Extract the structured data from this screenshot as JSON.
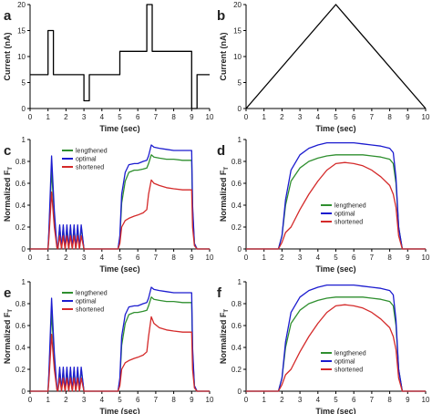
{
  "colors": {
    "axis": "#000000",
    "stimulus": "#000000",
    "lengthened": "#2f8f2f",
    "optimal": "#1c1ccf",
    "shortened": "#d42a2a"
  },
  "chart_data": [
    {
      "panel": "a",
      "type": "line",
      "xlabel": "Time (sec)",
      "ylabel": "Current (nA)",
      "xlim": [
        0,
        10
      ],
      "ylim": [
        0,
        20
      ],
      "xticks": [
        "0",
        "1",
        "2",
        "3",
        "4",
        "5",
        "6",
        "7",
        "8",
        "9",
        "10"
      ],
      "yticks": [
        "0",
        "5",
        "10",
        "15",
        "20"
      ],
      "series": [
        {
          "color": "#000000",
          "x": [
            0,
            1,
            1,
            1.3,
            1.3,
            3,
            3,
            3.3,
            3.3,
            5,
            5,
            6.5,
            6.5,
            6.8,
            6.8,
            9,
            9,
            9.3,
            9.3,
            10
          ],
          "y": [
            6.5,
            6.5,
            15,
            15,
            6.5,
            6.5,
            1.5,
            1.5,
            6.5,
            6.5,
            11,
            11,
            20,
            20,
            11,
            11,
            0,
            0,
            6.5,
            6.5
          ]
        }
      ]
    },
    {
      "panel": "b",
      "type": "line",
      "xlabel": "Time (sec)",
      "ylabel": "Current (nA)",
      "xlim": [
        0,
        10
      ],
      "ylim": [
        0,
        20
      ],
      "xticks": [
        "0",
        "1",
        "2",
        "3",
        "4",
        "5",
        "6",
        "7",
        "8",
        "9",
        "10"
      ],
      "yticks": [
        "0",
        "5",
        "10",
        "15",
        "20"
      ],
      "series": [
        {
          "color": "#000000",
          "x": [
            0,
            5,
            10
          ],
          "y": [
            0,
            20,
            0
          ]
        }
      ]
    },
    {
      "panel": "c",
      "type": "line",
      "xlabel": "Time (sec)",
      "ylabel": "Normalized F",
      "ylabel_sub": "T",
      "xlim": [
        0,
        10
      ],
      "ylim": [
        0,
        1
      ],
      "xticks": [
        "0",
        "1",
        "2",
        "3",
        "4",
        "5",
        "6",
        "7",
        "8",
        "9",
        "10"
      ],
      "yticks": [
        "0",
        "0.2",
        "0.4",
        "0.6",
        "0.8",
        "1"
      ],
      "legend_position": "top-left",
      "series": [
        {
          "name": "lengthened",
          "color": "#2f8f2f",
          "x": [
            0,
            1,
            1.05,
            1.2,
            1.35,
            1.5,
            1.55,
            1.65,
            1.75,
            1.85,
            1.95,
            2.05,
            2.15,
            2.25,
            2.35,
            2.45,
            2.55,
            2.65,
            2.75,
            2.85,
            3,
            3.5,
            4.9,
            5,
            5.1,
            5.3,
            5.5,
            5.8,
            6,
            6.3,
            6.5,
            6.6,
            6.75,
            6.9,
            7.2,
            7.6,
            8,
            8.5,
            9,
            9.05,
            9.15,
            9.3,
            10
          ],
          "y": [
            0,
            0,
            0.15,
            0.72,
            0.3,
            0.02,
            0,
            0.2,
            0,
            0.2,
            0,
            0.2,
            0,
            0.2,
            0,
            0.2,
            0,
            0.2,
            0,
            0.2,
            0,
            0,
            0,
            0.1,
            0.42,
            0.62,
            0.7,
            0.72,
            0.72,
            0.73,
            0.74,
            0.78,
            0.86,
            0.84,
            0.83,
            0.82,
            0.82,
            0.81,
            0.81,
            0.35,
            0.05,
            0,
            0
          ]
        },
        {
          "name": "optimal",
          "color": "#1c1ccf",
          "x": [
            0,
            1,
            1.05,
            1.2,
            1.35,
            1.5,
            1.55,
            1.65,
            1.75,
            1.85,
            1.95,
            2.05,
            2.15,
            2.25,
            2.35,
            2.45,
            2.55,
            2.65,
            2.75,
            2.85,
            3,
            3.5,
            4.9,
            5,
            5.1,
            5.3,
            5.5,
            5.8,
            6,
            6.3,
            6.5,
            6.6,
            6.75,
            6.9,
            7.2,
            7.6,
            8,
            8.5,
            9,
            9.05,
            9.15,
            9.3,
            10
          ],
          "y": [
            0,
            0,
            0.18,
            0.85,
            0.35,
            0.02,
            0,
            0.22,
            0,
            0.22,
            0,
            0.22,
            0,
            0.22,
            0,
            0.22,
            0,
            0.22,
            0,
            0.22,
            0,
            0,
            0,
            0.12,
            0.5,
            0.7,
            0.77,
            0.78,
            0.78,
            0.8,
            0.81,
            0.85,
            0.95,
            0.93,
            0.92,
            0.91,
            0.9,
            0.9,
            0.9,
            0.4,
            0.05,
            0,
            0
          ]
        },
        {
          "name": "shortened",
          "color": "#d42a2a",
          "x": [
            0,
            1,
            1.05,
            1.2,
            1.35,
            1.5,
            1.55,
            1.65,
            1.75,
            1.85,
            1.95,
            2.05,
            2.15,
            2.25,
            2.35,
            2.45,
            2.55,
            2.65,
            2.75,
            2.85,
            3,
            3.5,
            4.9,
            5,
            5.1,
            5.3,
            5.5,
            5.8,
            6,
            6.3,
            6.5,
            6.6,
            6.75,
            6.9,
            7.2,
            7.6,
            8,
            8.5,
            9,
            9.05,
            9.15,
            9.3,
            10
          ],
          "y": [
            0,
            0,
            0.1,
            0.52,
            0.2,
            0.01,
            0,
            0.12,
            0,
            0.12,
            0,
            0.12,
            0,
            0.12,
            0,
            0.12,
            0,
            0.12,
            0,
            0.12,
            0,
            0,
            0,
            0.05,
            0.2,
            0.26,
            0.28,
            0.3,
            0.31,
            0.33,
            0.36,
            0.5,
            0.63,
            0.6,
            0.58,
            0.56,
            0.55,
            0.54,
            0.54,
            0.2,
            0.03,
            0,
            0
          ]
        }
      ]
    },
    {
      "panel": "d",
      "type": "line",
      "xlabel": "Time (sec)",
      "ylabel": "Normalized F",
      "ylabel_sub": "T",
      "xlim": [
        0,
        10
      ],
      "ylim": [
        0,
        1
      ],
      "xticks": [
        "0",
        "1",
        "2",
        "3",
        "4",
        "5",
        "6",
        "7",
        "8",
        "9",
        "10"
      ],
      "yticks": [
        "0",
        "0.2",
        "0.4",
        "0.6",
        "0.8",
        "1"
      ],
      "legend_position": "middle-right",
      "series": [
        {
          "name": "lengthened",
          "color": "#2f8f2f",
          "x": [
            0,
            1.8,
            2,
            2.2,
            2.5,
            3,
            3.5,
            4,
            4.5,
            5,
            5.5,
            6,
            6.5,
            7,
            7.5,
            8,
            8.2,
            8.35,
            8.5,
            8.7,
            10
          ],
          "y": [
            0,
            0,
            0.12,
            0.4,
            0.62,
            0.74,
            0.8,
            0.83,
            0.85,
            0.86,
            0.86,
            0.86,
            0.86,
            0.85,
            0.84,
            0.82,
            0.78,
            0.6,
            0.2,
            0,
            0
          ]
        },
        {
          "name": "optimal",
          "color": "#1c1ccf",
          "x": [
            0,
            1.8,
            2,
            2.2,
            2.5,
            3,
            3.5,
            4,
            4.5,
            5,
            5.5,
            6,
            6.5,
            7,
            7.5,
            8,
            8.2,
            8.35,
            8.5,
            8.7,
            10
          ],
          "y": [
            0,
            0,
            0.12,
            0.45,
            0.72,
            0.86,
            0.92,
            0.95,
            0.97,
            0.97,
            0.97,
            0.97,
            0.96,
            0.95,
            0.94,
            0.92,
            0.88,
            0.65,
            0.2,
            0,
            0
          ]
        },
        {
          "name": "shortened",
          "color": "#d42a2a",
          "x": [
            0,
            1.8,
            2,
            2.2,
            2.5,
            3,
            3.5,
            4,
            4.5,
            5,
            5.5,
            6,
            6.5,
            7,
            7.5,
            8,
            8.2,
            8.35,
            8.5,
            8.7,
            10
          ],
          "y": [
            0,
            0,
            0.06,
            0.15,
            0.2,
            0.36,
            0.5,
            0.62,
            0.72,
            0.78,
            0.79,
            0.78,
            0.76,
            0.72,
            0.66,
            0.58,
            0.5,
            0.38,
            0.12,
            0,
            0
          ]
        }
      ]
    },
    {
      "panel": "e",
      "type": "line",
      "xlabel": "Time (sec)",
      "ylabel": "Normalized F",
      "ylabel_sub": "T",
      "xlim": [
        0,
        10
      ],
      "ylim": [
        0,
        1
      ],
      "xticks": [
        "0",
        "1",
        "2",
        "3",
        "4",
        "5",
        "6",
        "7",
        "8",
        "9",
        "10"
      ],
      "yticks": [
        "0",
        "0.2",
        "0.4",
        "0.6",
        "0.8",
        "1"
      ],
      "legend_position": "top-left",
      "series": [
        {
          "name": "lengthened",
          "color": "#2f8f2f",
          "x": [
            0,
            1,
            1.05,
            1.2,
            1.35,
            1.5,
            1.55,
            1.65,
            1.75,
            1.85,
            1.95,
            2.05,
            2.15,
            2.25,
            2.35,
            2.45,
            2.55,
            2.65,
            2.75,
            2.85,
            3,
            3.5,
            4.9,
            5,
            5.1,
            5.3,
            5.5,
            5.8,
            6,
            6.3,
            6.5,
            6.6,
            6.75,
            6.9,
            7.2,
            7.6,
            8,
            8.5,
            9,
            9.05,
            9.15,
            9.3,
            10
          ],
          "y": [
            0,
            0,
            0.15,
            0.72,
            0.3,
            0.02,
            0,
            0.2,
            0,
            0.2,
            0,
            0.2,
            0,
            0.2,
            0,
            0.2,
            0,
            0.2,
            0,
            0.2,
            0,
            0,
            0,
            0.1,
            0.42,
            0.62,
            0.7,
            0.72,
            0.72,
            0.73,
            0.74,
            0.78,
            0.86,
            0.84,
            0.83,
            0.82,
            0.82,
            0.81,
            0.81,
            0.35,
            0.05,
            0,
            0
          ]
        },
        {
          "name": "optimal",
          "color": "#1c1ccf",
          "x": [
            0,
            1,
            1.05,
            1.2,
            1.35,
            1.5,
            1.55,
            1.65,
            1.75,
            1.85,
            1.95,
            2.05,
            2.15,
            2.25,
            2.35,
            2.45,
            2.55,
            2.65,
            2.75,
            2.85,
            3,
            3.5,
            4.9,
            5,
            5.1,
            5.3,
            5.5,
            5.8,
            6,
            6.3,
            6.5,
            6.6,
            6.75,
            6.9,
            7.2,
            7.6,
            8,
            8.5,
            9,
            9.05,
            9.15,
            9.3,
            10
          ],
          "y": [
            0,
            0,
            0.18,
            0.85,
            0.35,
            0.02,
            0,
            0.22,
            0,
            0.22,
            0,
            0.22,
            0,
            0.22,
            0,
            0.22,
            0,
            0.22,
            0,
            0.22,
            0,
            0,
            0,
            0.12,
            0.5,
            0.7,
            0.77,
            0.78,
            0.78,
            0.8,
            0.81,
            0.85,
            0.95,
            0.93,
            0.92,
            0.91,
            0.9,
            0.9,
            0.9,
            0.4,
            0.05,
            0,
            0
          ]
        },
        {
          "name": "shortened",
          "color": "#d42a2a",
          "x": [
            0,
            1,
            1.05,
            1.2,
            1.35,
            1.5,
            1.55,
            1.65,
            1.75,
            1.85,
            1.95,
            2.05,
            2.15,
            2.25,
            2.35,
            2.45,
            2.55,
            2.65,
            2.75,
            2.85,
            3,
            3.5,
            4.9,
            5,
            5.1,
            5.3,
            5.5,
            5.8,
            6,
            6.3,
            6.5,
            6.6,
            6.75,
            6.9,
            7.2,
            7.6,
            8,
            8.5,
            9,
            9.05,
            9.15,
            9.3,
            10
          ],
          "y": [
            0,
            0,
            0.1,
            0.52,
            0.2,
            0.01,
            0,
            0.12,
            0,
            0.12,
            0,
            0.12,
            0,
            0.12,
            0,
            0.12,
            0,
            0.12,
            0,
            0.12,
            0,
            0,
            0,
            0.05,
            0.2,
            0.26,
            0.28,
            0.3,
            0.31,
            0.33,
            0.36,
            0.5,
            0.68,
            0.62,
            0.58,
            0.56,
            0.55,
            0.54,
            0.54,
            0.2,
            0.03,
            0,
            0
          ]
        }
      ]
    },
    {
      "panel": "f",
      "type": "line",
      "xlabel": "Time (sec)",
      "ylabel": "Normalized F",
      "ylabel_sub": "T",
      "xlim": [
        0,
        10
      ],
      "ylim": [
        0,
        1
      ],
      "xticks": [
        "0",
        "1",
        "2",
        "3",
        "4",
        "5",
        "6",
        "7",
        "8",
        "9",
        "10"
      ],
      "yticks": [
        "0",
        "0.2",
        "0.4",
        "0.6",
        "0.8",
        "1"
      ],
      "legend_position": "bottom-right",
      "series": [
        {
          "name": "lengthened",
          "color": "#2f8f2f",
          "x": [
            0,
            1.8,
            2,
            2.2,
            2.5,
            3,
            3.5,
            4,
            4.5,
            5,
            5.5,
            6,
            6.5,
            7,
            7.5,
            8,
            8.2,
            8.35,
            8.5,
            8.7,
            10
          ],
          "y": [
            0,
            0,
            0.12,
            0.4,
            0.62,
            0.74,
            0.8,
            0.83,
            0.85,
            0.86,
            0.86,
            0.86,
            0.86,
            0.85,
            0.84,
            0.82,
            0.78,
            0.6,
            0.2,
            0,
            0
          ]
        },
        {
          "name": "optimal",
          "color": "#1c1ccf",
          "x": [
            0,
            1.8,
            2,
            2.2,
            2.5,
            3,
            3.5,
            4,
            4.5,
            5,
            5.5,
            6,
            6.5,
            7,
            7.5,
            8,
            8.2,
            8.35,
            8.5,
            8.7,
            10
          ],
          "y": [
            0,
            0,
            0.12,
            0.45,
            0.72,
            0.86,
            0.92,
            0.95,
            0.97,
            0.97,
            0.97,
            0.97,
            0.96,
            0.95,
            0.94,
            0.92,
            0.88,
            0.65,
            0.2,
            0,
            0
          ]
        },
        {
          "name": "shortened",
          "color": "#d42a2a",
          "x": [
            0,
            1.8,
            2,
            2.2,
            2.5,
            3,
            3.5,
            4,
            4.5,
            5,
            5.5,
            6,
            6.5,
            7,
            7.5,
            8,
            8.2,
            8.35,
            8.5,
            8.7,
            10
          ],
          "y": [
            0,
            0,
            0.06,
            0.15,
            0.2,
            0.36,
            0.5,
            0.62,
            0.72,
            0.78,
            0.79,
            0.78,
            0.76,
            0.72,
            0.66,
            0.58,
            0.5,
            0.38,
            0.12,
            0,
            0
          ]
        }
      ]
    }
  ]
}
